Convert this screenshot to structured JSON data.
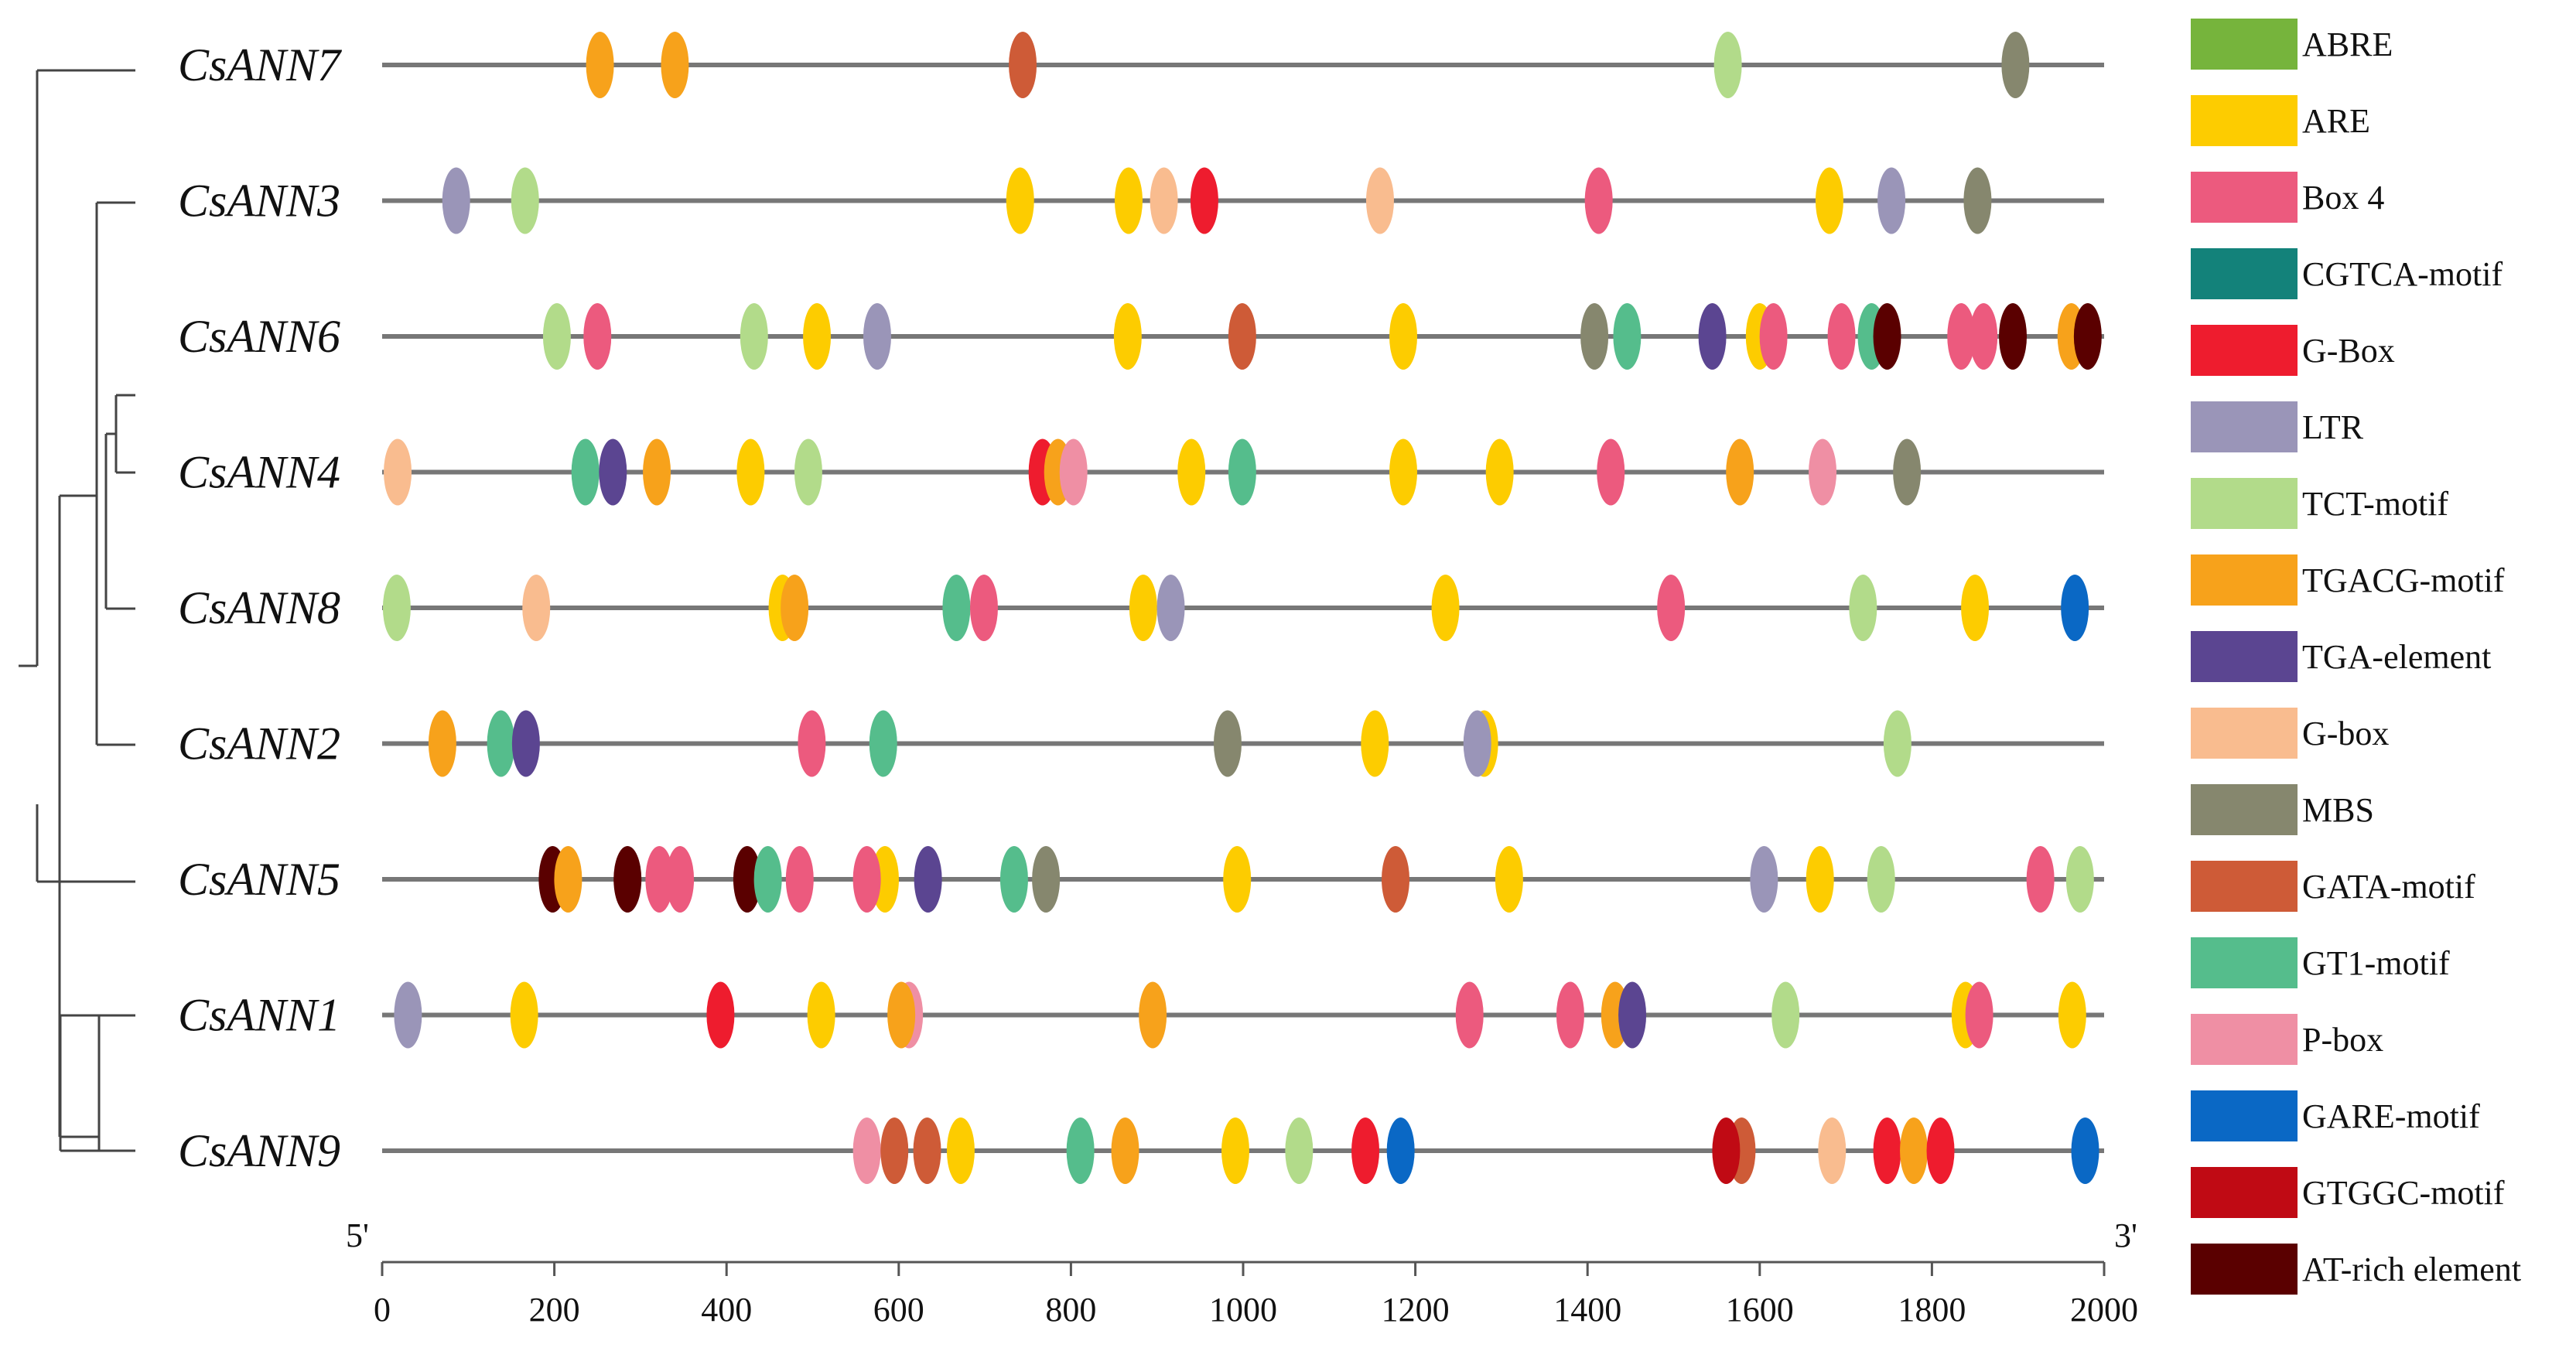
{
  "figure": {
    "end_labels": {
      "five_prime": "5'",
      "three_prime": "3'"
    }
  },
  "axis": {
    "min": 0,
    "max": 2000,
    "ticks": [
      0,
      200,
      400,
      600,
      800,
      1000,
      1200,
      1400,
      1600,
      1800,
      2000
    ],
    "tick_labels": [
      "0",
      "200",
      "400",
      "600",
      "800",
      "1000",
      "1200",
      "1400",
      "1600",
      "1800",
      "2000"
    ]
  },
  "legend": [
    {
      "name": "ABRE",
      "color": "#76B43C"
    },
    {
      "name": "ARE",
      "color": "#FDCC00"
    },
    {
      "name": "Box 4",
      "color": "#EC5A7E"
    },
    {
      "name": "CGTCA-motif",
      "color": "#13827A"
    },
    {
      "name": "G-Box",
      "color": "#EE1C2E"
    },
    {
      "name": "LTR",
      "color": "#9A95B8"
    },
    {
      "name": "TCT-motif",
      "color": "#B2DB8A"
    },
    {
      "name": "TGACG-motif",
      "color": "#F7A21B"
    },
    {
      "name": "TGA-element",
      "color": "#5B4591"
    },
    {
      "name": "G-box",
      "color": "#F9BC8F"
    },
    {
      "name": "MBS",
      "color": "#86876E"
    },
    {
      "name": "GATA-motif",
      "color": "#CE5B37"
    },
    {
      "name": "GT1-motif",
      "color": "#55BD8C"
    },
    {
      "name": "P-box",
      "color": "#EF8FA4"
    },
    {
      "name": "GARE-motif",
      "color": "#0A68C5"
    },
    {
      "name": "GTGGC-motif",
      "color": "#C00A14"
    },
    {
      "name": "AT-rich element",
      "color": "#5A0000"
    }
  ],
  "genes": [
    {
      "name": "CsANN7",
      "elements": [
        {
          "type": "TGACG-motif",
          "pos": 253
        },
        {
          "type": "TGACG-motif",
          "pos": 340
        },
        {
          "type": "GATA-motif",
          "pos": 744
        },
        {
          "type": "TCT-motif",
          "pos": 1563
        },
        {
          "type": "MBS",
          "pos": 1897
        }
      ]
    },
    {
      "name": "CsANN3",
      "elements": [
        {
          "type": "LTR",
          "pos": 86
        },
        {
          "type": "TCT-motif",
          "pos": 166
        },
        {
          "type": "ARE",
          "pos": 741
        },
        {
          "type": "ARE",
          "pos": 867
        },
        {
          "type": "G-box",
          "pos": 908
        },
        {
          "type": "G-Box",
          "pos": 955
        },
        {
          "type": "G-box",
          "pos": 1159
        },
        {
          "type": "Box 4",
          "pos": 1413
        },
        {
          "type": "ARE",
          "pos": 1681
        },
        {
          "type": "LTR",
          "pos": 1753
        },
        {
          "type": "MBS",
          "pos": 1853
        }
      ]
    },
    {
      "name": "CsANN6",
      "elements": [
        {
          "type": "TCT-motif",
          "pos": 203
        },
        {
          "type": "Box 4",
          "pos": 250
        },
        {
          "type": "TCT-motif",
          "pos": 432
        },
        {
          "type": "ARE",
          "pos": 505
        },
        {
          "type": "LTR",
          "pos": 575
        },
        {
          "type": "ARE",
          "pos": 866
        },
        {
          "type": "GATA-motif",
          "pos": 999
        },
        {
          "type": "ARE",
          "pos": 1186
        },
        {
          "type": "MBS",
          "pos": 1408
        },
        {
          "type": "GT1-motif",
          "pos": 1446
        },
        {
          "type": "TGA-element",
          "pos": 1545
        },
        {
          "type": "ARE",
          "pos": 1600
        },
        {
          "type": "Box 4",
          "pos": 1616
        },
        {
          "type": "Box 4",
          "pos": 1695
        },
        {
          "type": "GT1-motif",
          "pos": 1730
        },
        {
          "type": "AT-rich element",
          "pos": 1748
        },
        {
          "type": "Box 4",
          "pos": 1834
        },
        {
          "type": "Box 4",
          "pos": 1860
        },
        {
          "type": "AT-rich element",
          "pos": 1894
        },
        {
          "type": "TGACG-motif",
          "pos": 1962
        },
        {
          "type": "AT-rich element",
          "pos": 1981
        }
      ]
    },
    {
      "name": "CsANN4",
      "elements": [
        {
          "type": "G-box",
          "pos": 18
        },
        {
          "type": "GT1-motif",
          "pos": 236
        },
        {
          "type": "TGA-element",
          "pos": 268
        },
        {
          "type": "TGACG-motif",
          "pos": 319
        },
        {
          "type": "ARE",
          "pos": 428
        },
        {
          "type": "TCT-motif",
          "pos": 495
        },
        {
          "type": "G-Box",
          "pos": 767
        },
        {
          "type": "TGACG-motif",
          "pos": 785
        },
        {
          "type": "P-box",
          "pos": 803
        },
        {
          "type": "ARE",
          "pos": 940
        },
        {
          "type": "GT1-motif",
          "pos": 999
        },
        {
          "type": "ARE",
          "pos": 1186
        },
        {
          "type": "ARE",
          "pos": 1298
        },
        {
          "type": "Box 4",
          "pos": 1427
        },
        {
          "type": "TGACG-motif",
          "pos": 1577
        },
        {
          "type": "P-box",
          "pos": 1673
        },
        {
          "type": "MBS",
          "pos": 1771
        }
      ]
    },
    {
      "name": "CsANN8",
      "elements": [
        {
          "type": "TCT-motif",
          "pos": 17
        },
        {
          "type": "G-box",
          "pos": 179
        },
        {
          "type": "ARE",
          "pos": 465
        },
        {
          "type": "TGACG-motif",
          "pos": 479
        },
        {
          "type": "GT1-motif",
          "pos": 667
        },
        {
          "type": "Box 4",
          "pos": 699
        },
        {
          "type": "ARE",
          "pos": 884
        },
        {
          "type": "LTR",
          "pos": 916
        },
        {
          "type": "ARE",
          "pos": 1235
        },
        {
          "type": "Box 4",
          "pos": 1497
        },
        {
          "type": "TCT-motif",
          "pos": 1720
        },
        {
          "type": "ARE",
          "pos": 1850
        },
        {
          "type": "GARE-motif",
          "pos": 1966
        }
      ]
    },
    {
      "name": "CsANN2",
      "elements": [
        {
          "type": "TGACG-motif",
          "pos": 70
        },
        {
          "type": "GT1-motif",
          "pos": 138
        },
        {
          "type": "TGA-element",
          "pos": 167
        },
        {
          "type": "Box 4",
          "pos": 499
        },
        {
          "type": "GT1-motif",
          "pos": 582
        },
        {
          "type": "MBS",
          "pos": 982
        },
        {
          "type": "ARE",
          "pos": 1153
        },
        {
          "type": "ARE",
          "pos": 1280
        },
        {
          "type": "LTR",
          "pos": 1272
        },
        {
          "type": "TCT-motif",
          "pos": 1760
        }
      ]
    },
    {
      "name": "CsANN5",
      "elements": [
        {
          "type": "AT-rich element",
          "pos": 198
        },
        {
          "type": "TGACG-motif",
          "pos": 216
        },
        {
          "type": "AT-rich element",
          "pos": 285
        },
        {
          "type": "Box 4",
          "pos": 322
        },
        {
          "type": "Box 4",
          "pos": 346
        },
        {
          "type": "AT-rich element",
          "pos": 424
        },
        {
          "type": "GT1-motif",
          "pos": 448
        },
        {
          "type": "Box 4",
          "pos": 485
        },
        {
          "type": "ARE",
          "pos": 584
        },
        {
          "type": "Box 4",
          "pos": 563
        },
        {
          "type": "TGA-element",
          "pos": 634
        },
        {
          "type": "GT1-motif",
          "pos": 734
        },
        {
          "type": "MBS",
          "pos": 771
        },
        {
          "type": "ARE",
          "pos": 993
        },
        {
          "type": "GATA-motif",
          "pos": 1177
        },
        {
          "type": "ARE",
          "pos": 1309
        },
        {
          "type": "LTR",
          "pos": 1605
        },
        {
          "type": "ARE",
          "pos": 1670
        },
        {
          "type": "TCT-motif",
          "pos": 1741
        },
        {
          "type": "Box 4",
          "pos": 1926
        },
        {
          "type": "TCT-motif",
          "pos": 1972
        }
      ]
    },
    {
      "name": "CsANN1",
      "elements": [
        {
          "type": "LTR",
          "pos": 30
        },
        {
          "type": "ARE",
          "pos": 165
        },
        {
          "type": "G-Box",
          "pos": 393
        },
        {
          "type": "ARE",
          "pos": 510
        },
        {
          "type": "P-box",
          "pos": 612
        },
        {
          "type": "TGACG-motif",
          "pos": 603
        },
        {
          "type": "TGACG-motif",
          "pos": 895
        },
        {
          "type": "Box 4",
          "pos": 1263
        },
        {
          "type": "Box 4",
          "pos": 1380
        },
        {
          "type": "TGACG-motif",
          "pos": 1432
        },
        {
          "type": "TGA-element",
          "pos": 1452
        },
        {
          "type": "TCT-motif",
          "pos": 1630
        },
        {
          "type": "ARE",
          "pos": 1839
        },
        {
          "type": "Box 4",
          "pos": 1855
        },
        {
          "type": "ARE",
          "pos": 1963
        }
      ]
    },
    {
      "name": "CsANN9",
      "elements": [
        {
          "type": "P-box",
          "pos": 563
        },
        {
          "type": "GATA-motif",
          "pos": 595
        },
        {
          "type": "GATA-motif",
          "pos": 633
        },
        {
          "type": "ARE",
          "pos": 672
        },
        {
          "type": "GT1-motif",
          "pos": 811
        },
        {
          "type": "TGACG-motif",
          "pos": 863
        },
        {
          "type": "ARE",
          "pos": 991
        },
        {
          "type": "TCT-motif",
          "pos": 1065
        },
        {
          "type": "G-Box",
          "pos": 1142
        },
        {
          "type": "GARE-motif",
          "pos": 1183
        },
        {
          "type": "GATA-motif",
          "pos": 1579
        },
        {
          "type": "GTGGC-motif",
          "pos": 1561
        },
        {
          "type": "G-box",
          "pos": 1684
        },
        {
          "type": "G-Box",
          "pos": 1748
        },
        {
          "type": "TGACG-motif",
          "pos": 1779
        },
        {
          "type": "G-Box",
          "pos": 1810
        },
        {
          "type": "GARE-motif",
          "pos": 1978
        }
      ]
    }
  ]
}
